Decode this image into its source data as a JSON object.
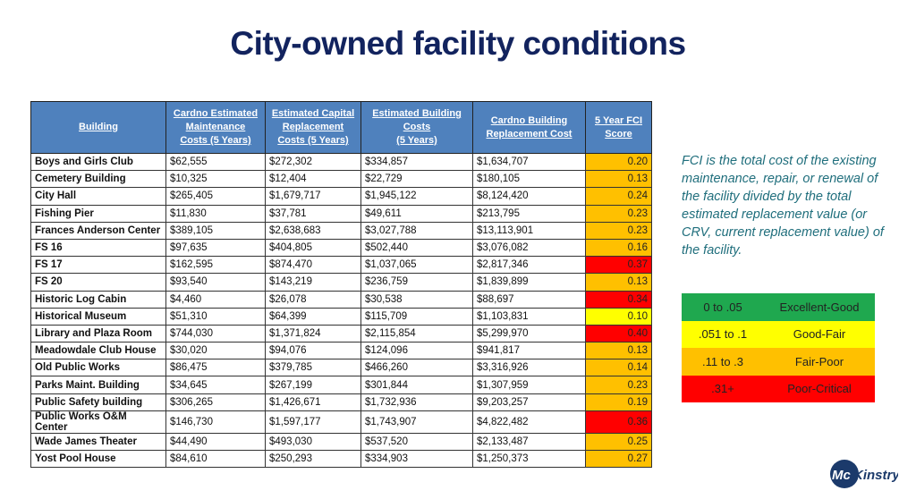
{
  "title": "City-owned facility conditions",
  "table": {
    "headers": [
      "Building",
      "Cardno Estimated\nMaintenance\nCosts (5 Years)",
      "Estimated Capital\nReplacement\nCosts (5 Years)",
      "Estimated Building\nCosts\n(5 Years)",
      "Cardno Building\nReplacement Cost",
      "5 Year FCI\nScore"
    ],
    "rows": [
      [
        "Boys and Girls Club",
        "$62,555",
        "$272,302",
        "$334,857",
        "$1,634,707",
        "0.20"
      ],
      [
        "Cemetery Building",
        "$10,325",
        "$12,404",
        "$22,729",
        "$180,105",
        "0.13"
      ],
      [
        "City Hall",
        "$265,405",
        "$1,679,717",
        "$1,945,122",
        "$8,124,420",
        "0.24"
      ],
      [
        "Fishing Pier",
        "$11,830",
        "$37,781",
        "$49,611",
        "$213,795",
        "0.23"
      ],
      [
        "Frances Anderson Center",
        "$389,105",
        "$2,638,683",
        "$3,027,788",
        "$13,113,901",
        "0.23"
      ],
      [
        "FS 16",
        "$97,635",
        "$404,805",
        "$502,440",
        "$3,076,082",
        "0.16"
      ],
      [
        "FS 17",
        "$162,595",
        "$874,470",
        "$1,037,065",
        "$2,817,346",
        "0.37"
      ],
      [
        "FS 20",
        "$93,540",
        "$143,219",
        "$236,759",
        "$1,839,899",
        "0.13"
      ],
      [
        "Historic Log Cabin",
        "$4,460",
        "$26,078",
        "$30,538",
        "$88,697",
        "0.34"
      ],
      [
        "Historical Museum",
        "$51,310",
        "$64,399",
        "$115,709",
        "$1,103,831",
        "0.10"
      ],
      [
        "Library and Plaza Room",
        "$744,030",
        "$1,371,824",
        "$2,115,854",
        "$5,299,970",
        "0.40"
      ],
      [
        "Meadowdale Club House",
        "$30,020",
        "$94,076",
        "$124,096",
        "$941,817",
        "0.13"
      ],
      [
        "Old Public Works",
        "$86,475",
        "$379,785",
        "$466,260",
        "$3,316,926",
        "0.14"
      ],
      [
        "Parks Maint. Building",
        "$34,645",
        "$267,199",
        "$301,844",
        "$1,307,959",
        "0.23"
      ],
      [
        "Public Safety building",
        "$306,265",
        "$1,426,671",
        "$1,732,936",
        "$9,203,257",
        "0.19"
      ],
      [
        "Public Works O&M Center",
        "$146,730",
        "$1,597,177",
        "$1,743,907",
        "$4,822,482",
        "0.36"
      ],
      [
        "Wade James Theater",
        "$44,490",
        "$493,030",
        "$537,520",
        "$2,133,487",
        "0.25"
      ],
      [
        "Yost Pool House",
        "$84,610",
        "$250,293",
        "$334,903",
        "$1,250,373",
        "0.27"
      ]
    ]
  },
  "note": "FCI is the total cost of the existing maintenance, repair, or renewal of the facility divided by the total estimated replacement value (or CRV, current replacement value) of the facility.",
  "legend": [
    {
      "range": "0  to .05",
      "label": "Excellent-Good",
      "color": "#1fa84f"
    },
    {
      "range": ".051 to .1",
      "label": "Good-Fair",
      "color": "#ffff00"
    },
    {
      "range": ".11 to .3",
      "label": "Fair-Poor",
      "color": "#ffc000"
    },
    {
      "range": ".31+",
      "label": "Poor-Critical",
      "color": "#ff0000"
    }
  ],
  "logo_text": "McKinstry"
}
